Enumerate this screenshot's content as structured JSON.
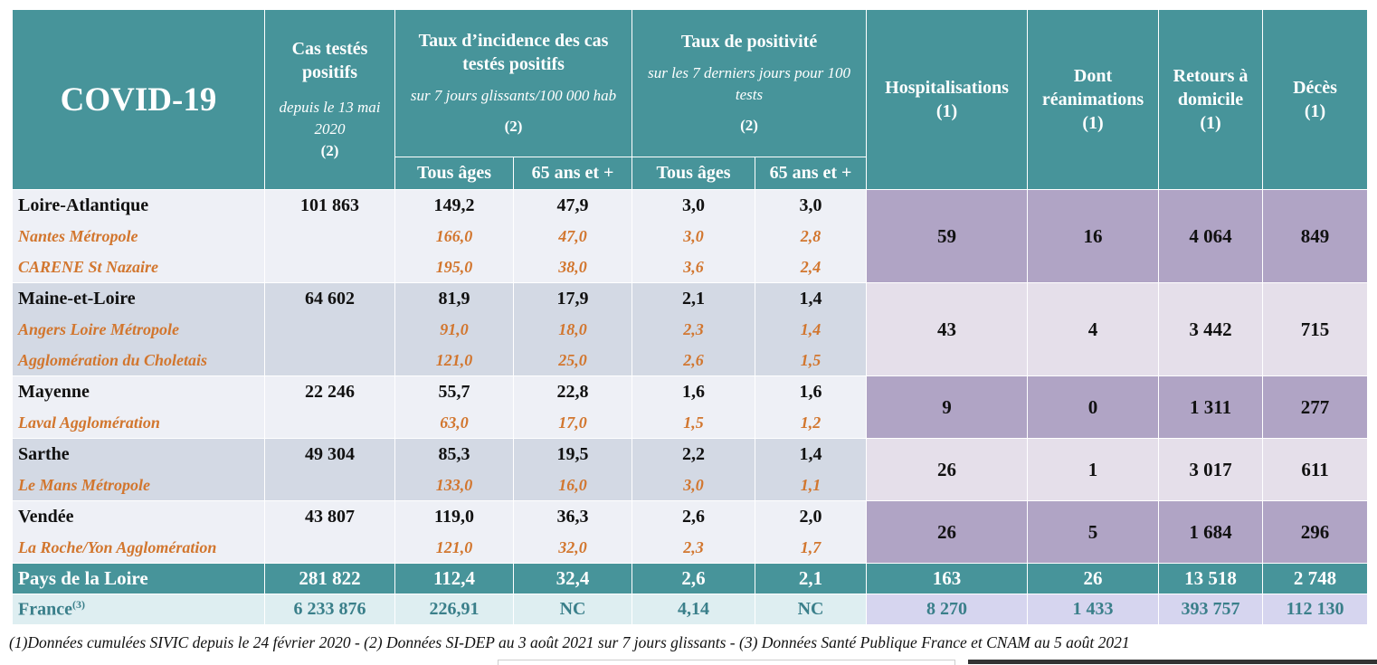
{
  "header": {
    "title": "COVID-19",
    "cas": {
      "title": "Cas testés positifs",
      "sub": "depuis le 13 mai 2020",
      "note": "(2)"
    },
    "incidence": {
      "title": "Taux d’incidence des cas testés positifs",
      "sub": "sur 7 jours glissants/100 000 hab",
      "note": "(2)"
    },
    "positivite": {
      "title": "Taux de positivité",
      "sub": "sur les 7 derniers jours pour 100 tests",
      "note": "(2)"
    },
    "hospit": {
      "title": "Hospitalisations",
      "note": "(1)"
    },
    "rea": {
      "title": "Dont réanimations",
      "note": "(1)"
    },
    "retours": {
      "title": "Retours à domicile",
      "note": "(1)"
    },
    "deces": {
      "title": "Décès",
      "note": "(1)"
    },
    "tous_ages_1": "Tous âges",
    "ans65_1": "65 ans et +",
    "tous_ages_2": "Tous âges",
    "ans65_2": "65 ans et +"
  },
  "departments": [
    {
      "name": "Loire-Atlantique",
      "cas": "101 863",
      "inc_all": "149,2",
      "inc_65": "47,9",
      "pos_all": "3,0",
      "pos_65": "3,0",
      "hospit": "59",
      "rea": "16",
      "retours": "4 064",
      "deces": "849",
      "subs": [
        {
          "name": "Nantes Métropole",
          "inc_all": "166,0",
          "inc_65": "47,0",
          "pos_all": "3,0",
          "pos_65": "2,8"
        },
        {
          "name": "CARENE St Nazaire",
          "inc_all": "195,0",
          "inc_65": "38,0",
          "pos_all": "3,6",
          "pos_65": "2,4"
        }
      ]
    },
    {
      "name": "Maine-et-Loire",
      "cas": "64 602",
      "inc_all": "81,9",
      "inc_65": "17,9",
      "pos_all": "2,1",
      "pos_65": "1,4",
      "hospit": "43",
      "rea": "4",
      "retours": "3 442",
      "deces": "715",
      "subs": [
        {
          "name": "Angers Loire Métropole",
          "inc_all": "91,0",
          "inc_65": "18,0",
          "pos_all": "2,3",
          "pos_65": "1,4"
        },
        {
          "name": "Agglomération du Choletais",
          "inc_all": "121,0",
          "inc_65": "25,0",
          "pos_all": "2,6",
          "pos_65": "1,5"
        }
      ]
    },
    {
      "name": "Mayenne",
      "cas": "22 246",
      "inc_all": "55,7",
      "inc_65": "22,8",
      "pos_all": "1,6",
      "pos_65": "1,6",
      "hospit": "9",
      "rea": "0",
      "retours": "1 311",
      "deces": "277",
      "subs": [
        {
          "name": "Laval Agglomération",
          "inc_all": "63,0",
          "inc_65": "17,0",
          "pos_all": "1,5",
          "pos_65": "1,2"
        }
      ]
    },
    {
      "name": "Sarthe",
      "cas": "49 304",
      "inc_all": "85,3",
      "inc_65": "19,5",
      "pos_all": "2,2",
      "pos_65": "1,4",
      "hospit": "26",
      "rea": "1",
      "retours": "3 017",
      "deces": "611",
      "subs": [
        {
          "name": "Le Mans Métropole",
          "inc_all": "133,0",
          "inc_65": "16,0",
          "pos_all": "3,0",
          "pos_65": "1,1"
        }
      ]
    },
    {
      "name": "Vendée",
      "cas": "43 807",
      "inc_all": "119,0",
      "inc_65": "36,3",
      "pos_all": "2,6",
      "pos_65": "2,0",
      "hospit": "26",
      "rea": "5",
      "retours": "1 684",
      "deces": "296",
      "subs": [
        {
          "name": "La Roche/Yon  Agglomération",
          "inc_all": "121,0",
          "inc_65": "32,0",
          "pos_all": "2,3",
          "pos_65": "1,7"
        }
      ]
    }
  ],
  "total": {
    "name": "Pays de la Loire",
    "cas": "281 822",
    "inc_all": "112,4",
    "inc_65": "32,4",
    "pos_all": "2,6",
    "pos_65": "2,1",
    "hospit": "163",
    "rea": "26",
    "retours": "13 518",
    "deces": "2 748"
  },
  "france": {
    "name": "France",
    "sup": "(3)",
    "cas": "6 233 876",
    "inc_all": "226,91",
    "inc_65": "NC",
    "pos_all": "4,14",
    "pos_65": "NC",
    "hospit": "8 270",
    "rea": "1 433",
    "retours": "393 757",
    "deces": "112 130"
  },
  "footnote": "(1)Données cumulées SIVIC depuis le 24 février 2020 -  (2) Données SI-DEP au 3 août 2021 sur 7 jours glissants - (3) Données Santé Publique France et CNAM au 5 août 2021",
  "colors": {
    "header": "#47949a",
    "purple": "#b0a4c5",
    "lavender": "#e5dfea",
    "orange": "#d2762e",
    "france_text": "#3a7f8a"
  }
}
